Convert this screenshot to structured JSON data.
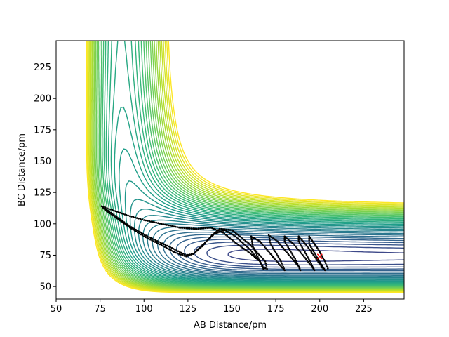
{
  "chart_data": {
    "type": "contour",
    "title": "",
    "xlabel": "AB Distance/pm",
    "ylabel": "BC Distance/pm",
    "xlim": [
      50,
      248
    ],
    "ylim": [
      40,
      246
    ],
    "x_ticks": [
      "50",
      "75",
      "100",
      "125",
      "150",
      "175",
      "200",
      "225"
    ],
    "y_ticks": [
      "50",
      "75",
      "100",
      "125",
      "150",
      "175",
      "200",
      "225"
    ],
    "x_tick_values": [
      50,
      75,
      100,
      125,
      150,
      175,
      200,
      225
    ],
    "y_tick_values": [
      50,
      75,
      100,
      125,
      150,
      175,
      200,
      225
    ],
    "grid": false,
    "legend": "none",
    "colormap": "viridis",
    "colormap_stops": [
      "#440154",
      "#482878",
      "#3e4989",
      "#31688e",
      "#26828e",
      "#1f9e89",
      "#35b779",
      "#6ece58",
      "#b5de2b",
      "#fde725"
    ],
    "trajectory_color": "#000000",
    "marker_color": "#ff0000",
    "end_marker": {
      "x": 200,
      "y": 74,
      "symbol": "x"
    },
    "trajectory": [
      [
        76,
        114
      ],
      [
        82,
        111
      ],
      [
        90,
        107
      ],
      [
        100,
        103
      ],
      [
        110,
        100
      ],
      [
        120,
        97
      ],
      [
        130,
        96
      ],
      [
        138,
        97
      ],
      [
        145,
        93
      ],
      [
        152,
        85
      ],
      [
        160,
        77
      ],
      [
        166,
        70
      ],
      [
        168,
        65
      ],
      [
        170,
        64
      ],
      [
        169,
        70
      ],
      [
        160,
        84
      ],
      [
        150,
        95
      ],
      [
        143,
        96
      ],
      [
        138,
        90
      ],
      [
        133,
        82
      ],
      [
        128,
        76
      ],
      [
        124,
        74
      ],
      [
        118,
        77
      ],
      [
        110,
        83
      ],
      [
        100,
        90
      ],
      [
        92,
        97
      ],
      [
        84,
        105
      ],
      [
        78,
        111
      ],
      [
        76,
        114
      ],
      [
        82,
        108
      ],
      [
        92,
        98
      ],
      [
        102,
        90
      ],
      [
        114,
        82
      ],
      [
        124,
        75
      ],
      [
        128,
        76
      ],
      [
        134,
        84
      ],
      [
        140,
        92
      ],
      [
        146,
        95
      ],
      [
        152,
        90
      ],
      [
        160,
        80
      ],
      [
        166,
        70
      ],
      [
        168,
        64
      ],
      [
        166,
        70
      ],
      [
        162,
        82
      ],
      [
        161,
        90
      ],
      [
        166,
        86
      ],
      [
        172,
        76
      ],
      [
        178,
        66
      ],
      [
        180,
        63
      ],
      [
        178,
        70
      ],
      [
        172,
        84
      ],
      [
        171,
        91
      ],
      [
        176,
        86
      ],
      [
        182,
        76
      ],
      [
        188,
        66
      ],
      [
        189,
        63
      ],
      [
        186,
        72
      ],
      [
        180,
        86
      ],
      [
        180,
        90
      ],
      [
        185,
        84
      ],
      [
        191,
        74
      ],
      [
        196,
        65
      ],
      [
        197,
        63
      ],
      [
        193,
        74
      ],
      [
        188,
        86
      ],
      [
        188,
        90
      ],
      [
        193,
        82
      ],
      [
        198,
        72
      ],
      [
        202,
        64
      ],
      [
        203,
        63
      ],
      [
        199,
        72
      ],
      [
        194,
        84
      ],
      [
        194,
        90
      ],
      [
        199,
        80
      ],
      [
        203,
        70
      ],
      [
        205,
        63
      ]
    ]
  }
}
